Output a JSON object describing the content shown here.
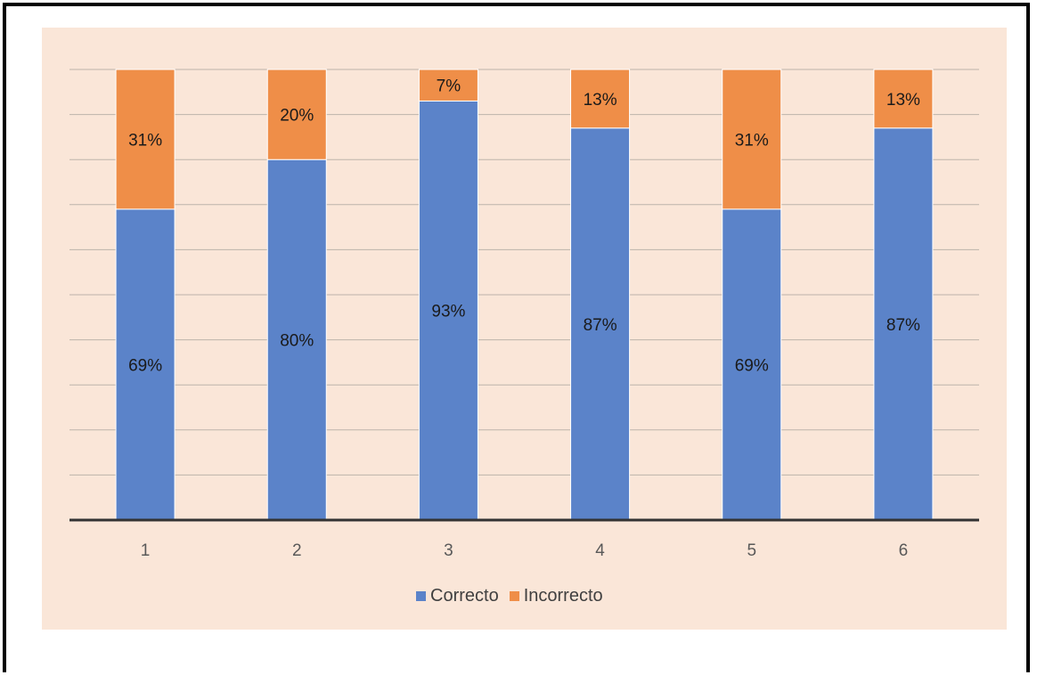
{
  "chart_data": {
    "type": "bar",
    "stacked": true,
    "categories": [
      "1",
      "2",
      "3",
      "4",
      "5",
      "6"
    ],
    "series": [
      {
        "name": "Correcto",
        "color": "#5b83c9",
        "values": [
          69,
          80,
          93,
          87,
          69,
          87
        ],
        "labels": [
          "69%",
          "80%",
          "93%",
          "87%",
          "69%",
          "87%"
        ]
      },
      {
        "name": "Incorrecto",
        "color": "#ef8e48",
        "values": [
          31,
          20,
          7,
          13,
          31,
          13
        ],
        "labels": [
          "31%",
          "20%",
          "7%",
          "13%",
          "31%",
          "13%"
        ]
      }
    ],
    "ylim": [
      0,
      100
    ],
    "grid": true,
    "legend": "bottom",
    "background": "#fae6d8"
  }
}
